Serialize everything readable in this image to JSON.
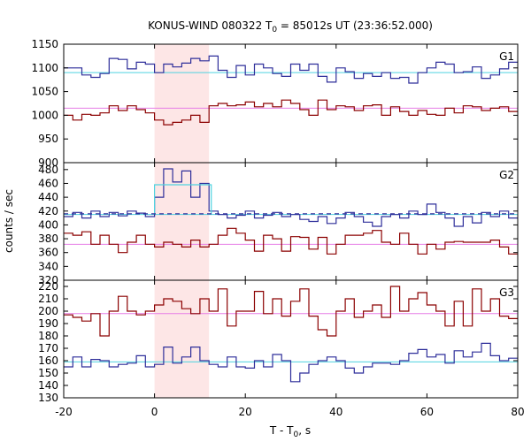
{
  "chart_data": {
    "type": "line",
    "title": "KONUS-WIND 080322 T",
    "title_sub": "0",
    "title_rest": " = 85012s UT (23:36:52.000)",
    "xlabel": "T - T",
    "xlabel_sub": "0",
    "xlabel_rest": ", s",
    "ylabel": "counts / sec",
    "xlim": [
      -20,
      80
    ],
    "x_ticks": [
      "-20",
      "0",
      "20",
      "40",
      "60",
      "80"
    ],
    "shaded_interval": [
      0,
      12
    ],
    "shade_color": "#fde6e6",
    "panels": [
      {
        "label": "G1",
        "ylim": [
          900,
          1150
        ],
        "y_ticks": [
          "900",
          "950",
          "1000",
          "1050",
          "1100",
          "1150"
        ],
        "series": [
          {
            "color": "#2e2e9a",
            "x": [
              -20,
              -16,
              -14,
              -12,
              -10,
              -8,
              -6,
              -4,
              -2,
              0,
              2,
              4,
              6,
              8,
              10,
              12,
              14,
              16,
              18,
              20,
              22,
              24,
              26,
              28,
              30,
              32,
              34,
              36,
              38,
              40,
              42,
              44,
              46,
              48,
              50,
              52,
              54,
              56,
              58,
              60,
              62,
              64,
              66,
              68,
              70,
              72,
              74,
              76,
              78
            ],
            "y": [
              1100,
              1085,
              1080,
              1088,
              1120,
              1118,
              1098,
              1112,
              1108,
              1090,
              1108,
              1102,
              1110,
              1120,
              1115,
              1125,
              1095,
              1080,
              1105,
              1085,
              1108,
              1100,
              1088,
              1082,
              1108,
              1095,
              1108,
              1082,
              1070,
              1100,
              1092,
              1078,
              1088,
              1082,
              1090,
              1078,
              1080,
              1068,
              1090,
              1100,
              1112,
              1108,
              1090,
              1092,
              1102,
              1078,
              1085,
              1098,
              1112
            ]
          },
          {
            "color": "#8b0000",
            "x": [
              -20,
              -18,
              -16,
              -14,
              -12,
              -10,
              -8,
              -6,
              -4,
              -2,
              0,
              2,
              4,
              6,
              8,
              10,
              12,
              14,
              16,
              18,
              20,
              22,
              24,
              26,
              28,
              30,
              32,
              34,
              36,
              38,
              40,
              42,
              44,
              46,
              48,
              50,
              52,
              54,
              56,
              58,
              60,
              62,
              64,
              66,
              68,
              70,
              72,
              74,
              76,
              78
            ],
            "y": [
              1000,
              990,
              1002,
              1000,
              1005,
              1020,
              1010,
              1020,
              1012,
              1005,
              990,
              980,
              985,
              990,
              1000,
              985,
              1020,
              1025,
              1020,
              1022,
              1028,
              1018,
              1025,
              1018,
              1032,
              1025,
              1012,
              1000,
              1032,
              1012,
              1020,
              1018,
              1010,
              1020,
              1022,
              1000,
              1018,
              1008,
              1000,
              1010,
              1002,
              1000,
              1015,
              1005,
              1020,
              1018,
              1010,
              1015,
              1018,
              1008
            ]
          }
        ],
        "background": [
          {
            "color": "#4fd3e0",
            "value": 1090
          },
          {
            "color": "#e67de6",
            "value": 1015
          }
        ]
      },
      {
        "label": "G2",
        "ylim": [
          320,
          490
        ],
        "y_ticks": [
          "320",
          "340",
          "360",
          "380",
          "400",
          "420",
          "440",
          "460",
          "480"
        ],
        "series": [
          {
            "color": "#2e2e9a",
            "x": [
              -20,
              -18,
              -16,
              -14,
              -12,
              -10,
              -8,
              -6,
              -4,
              -2,
              0,
              2,
              4,
              6,
              8,
              10,
              12,
              14,
              16,
              18,
              20,
              22,
              24,
              26,
              28,
              30,
              32,
              34,
              36,
              38,
              40,
              42,
              44,
              46,
              48,
              50,
              52,
              54,
              56,
              58,
              60,
              62,
              64,
              66,
              68,
              70,
              72,
              74,
              76,
              78
            ],
            "y": [
              412,
              418,
              410,
              420,
              412,
              418,
              413,
              420,
              417,
              412,
              440,
              481,
              462,
              478,
              440,
              460,
              420,
              415,
              410,
              414,
              420,
              410,
              414,
              418,
              412,
              415,
              408,
              405,
              412,
              402,
              410,
              418,
              412,
              404,
              398,
              412,
              415,
              410,
              420,
              415,
              430,
              418,
              410,
              398,
              412,
              403,
              418,
              412,
              420,
              410
            ]
          },
          {
            "color": "#8b0000",
            "x": [
              -20,
              -18,
              -16,
              -14,
              -12,
              -10,
              -8,
              -6,
              -4,
              -2,
              0,
              2,
              4,
              6,
              8,
              10,
              12,
              14,
              16,
              18,
              20,
              22,
              24,
              26,
              28,
              30,
              32,
              34,
              36,
              38,
              40,
              42,
              44,
              46,
              48,
              50,
              52,
              54,
              56,
              58,
              60,
              62,
              64,
              66,
              68,
              70,
              72,
              74,
              76,
              78
            ],
            "y": [
              388,
              385,
              390,
              372,
              385,
              372,
              360,
              375,
              385,
              372,
              368,
              375,
              372,
              368,
              378,
              368,
              372,
              385,
              395,
              388,
              378,
              362,
              385,
              380,
              362,
              383,
              382,
              365,
              382,
              358,
              372,
              385,
              385,
              388,
              392,
              375,
              372,
              388,
              372,
              358,
              372,
              365,
              375,
              376,
              375,
              375,
              375,
              378,
              368,
              358
            ]
          }
        ],
        "background": [
          {
            "color": "#4fd3e0",
            "value": 415
          },
          {
            "color": "#e67de6",
            "value": 372
          }
        ],
        "fit": {
          "color": "#4fd3e0",
          "x_range": [
            0,
            12.5
          ],
          "value": 458
        },
        "dashed": {
          "color": "#2e2e9a",
          "value": 416
        }
      },
      {
        "label": "G3",
        "ylim": [
          130,
          225
        ],
        "y_ticks": [
          "130",
          "140",
          "150",
          "160",
          "170",
          "180",
          "190",
          "200",
          "210",
          "220"
        ],
        "series": [
          {
            "color": "#8b0000",
            "x": [
              -20,
              -18,
              -16,
              -14,
              -12,
              -10,
              -8,
              -6,
              -4,
              -2,
              0,
              2,
              4,
              6,
              8,
              10,
              12,
              14,
              16,
              18,
              20,
              22,
              24,
              26,
              28,
              30,
              32,
              34,
              36,
              38,
              40,
              42,
              44,
              46,
              48,
              50,
              52,
              54,
              56,
              58,
              60,
              62,
              64,
              66,
              68,
              70,
              72,
              74,
              76,
              78
            ],
            "y": [
              197,
              195,
              192,
              198,
              180,
              200,
              212,
              200,
              197,
              200,
              205,
              210,
              208,
              202,
              198,
              210,
              200,
              218,
              188,
              200,
              200,
              216,
              198,
              210,
              196,
              208,
              218,
              196,
              185,
              180,
              200,
              210,
              195,
              200,
              205,
              195,
              220,
              200,
              210,
              215,
              205,
              200,
              188,
              208,
              188,
              218,
              200,
              210,
              196,
              194
            ]
          },
          {
            "color": "#2e2e9a",
            "x": [
              -20,
              -18,
              -16,
              -14,
              -12,
              -10,
              -8,
              -6,
              -4,
              -2,
              0,
              2,
              4,
              6,
              8,
              10,
              12,
              14,
              16,
              18,
              20,
              22,
              24,
              26,
              28,
              30,
              32,
              34,
              36,
              38,
              40,
              42,
              44,
              46,
              48,
              50,
              52,
              54,
              56,
              58,
              60,
              62,
              64,
              66,
              68,
              70,
              72,
              74,
              76,
              78
            ],
            "y": [
              155,
              163,
              155,
              161,
              160,
              155,
              157,
              158,
              164,
              155,
              157,
              171,
              158,
              163,
              171,
              160,
              157,
              155,
              163,
              155,
              154,
              160,
              155,
              165,
              160,
              143,
              150,
              157,
              160,
              163,
              160,
              154,
              150,
              155,
              158,
              158,
              157,
              160,
              166,
              169,
              163,
              165,
              158,
              168,
              163,
              167,
              174,
              164,
              160,
              162
            ]
          }
        ],
        "background": [
          {
            "color": "#e67de6",
            "value": 198
          },
          {
            "color": "#4fd3e0",
            "value": 159
          }
        ]
      }
    ]
  }
}
